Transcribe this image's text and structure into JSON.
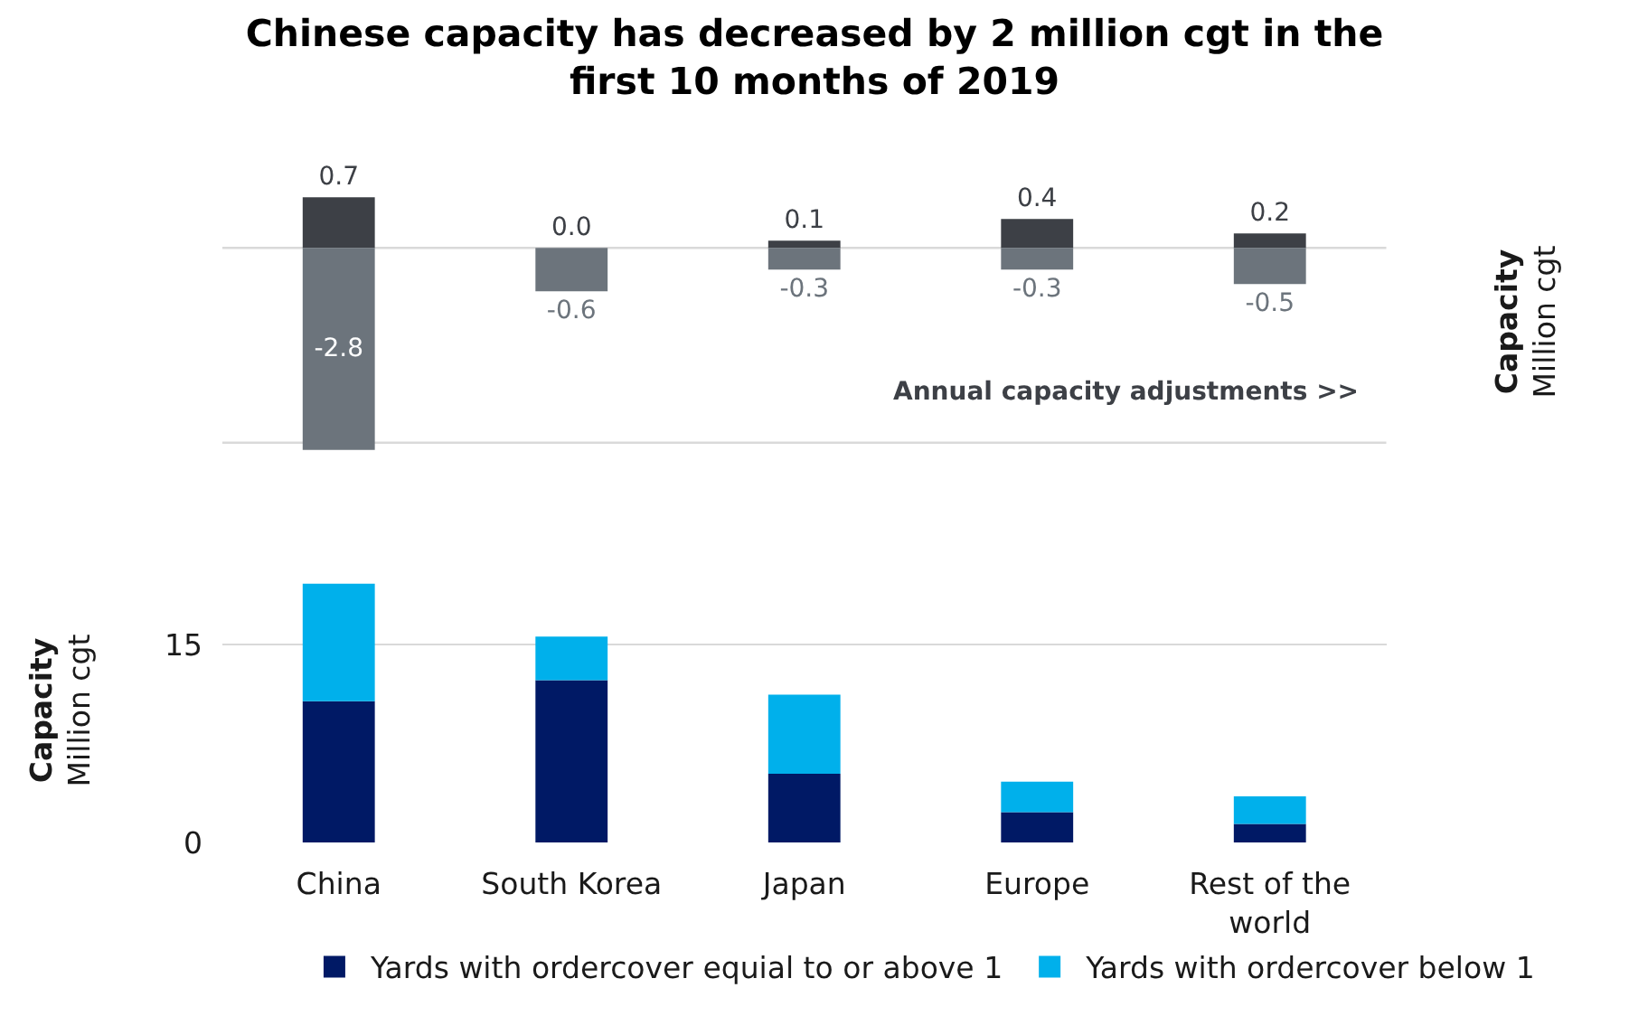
{
  "chart_data": [
    {
      "type": "bar",
      "title": "Chinese capacity has decreased by 2 million cgt in the first 10 months of 2019",
      "ylabel": "Capacity\nMillion cgt",
      "annotations": [
        "Annual capacity adjustments >>"
      ],
      "categories": [
        "China",
        "South Korea",
        "Japan",
        "Europe",
        "Rest of the world"
      ],
      "stacked": true,
      "tick_labels": false,
      "ref_lines": [
        {
          "axis": "y",
          "value": 0
        },
        {
          "axis": "y",
          "value": -2.7
        }
      ],
      "series": [
        {
          "color": "#3d4046",
          "values": [
            0.7,
            0.0,
            0.1,
            0.4,
            0.2
          ],
          "value_labels": [
            "0.7",
            "0.0",
            "0.1",
            "0.4",
            "0.2"
          ]
        },
        {
          "color": "#6c747c",
          "values": [
            -2.8,
            -0.6,
            -0.3,
            -0.3,
            -0.5
          ],
          "value_labels": [
            "-2.8",
            "-0.6",
            "-0.3",
            "-0.3",
            "-0.5"
          ]
        }
      ]
    },
    {
      "type": "bar",
      "ylabel": "Capacity\nMillion cgt",
      "categories": [
        "China",
        "South Korea",
        "Japan",
        "Europe",
        "Rest of the world"
      ],
      "stacked": true,
      "grid": "y",
      "ylim": [
        0,
        20
      ],
      "yticks": [
        0,
        15
      ],
      "legend": "bottom",
      "series": [
        {
          "name": "Yards with ordercover equial to or above 1",
          "color": "#001965",
          "values": [
            10.7,
            12.3,
            5.2,
            2.3,
            1.4
          ]
        },
        {
          "name": "Yards with ordercover below 1",
          "color": "#00b0eb",
          "values": [
            8.9,
            3.3,
            6.0,
            2.3,
            2.1
          ]
        }
      ]
    }
  ]
}
